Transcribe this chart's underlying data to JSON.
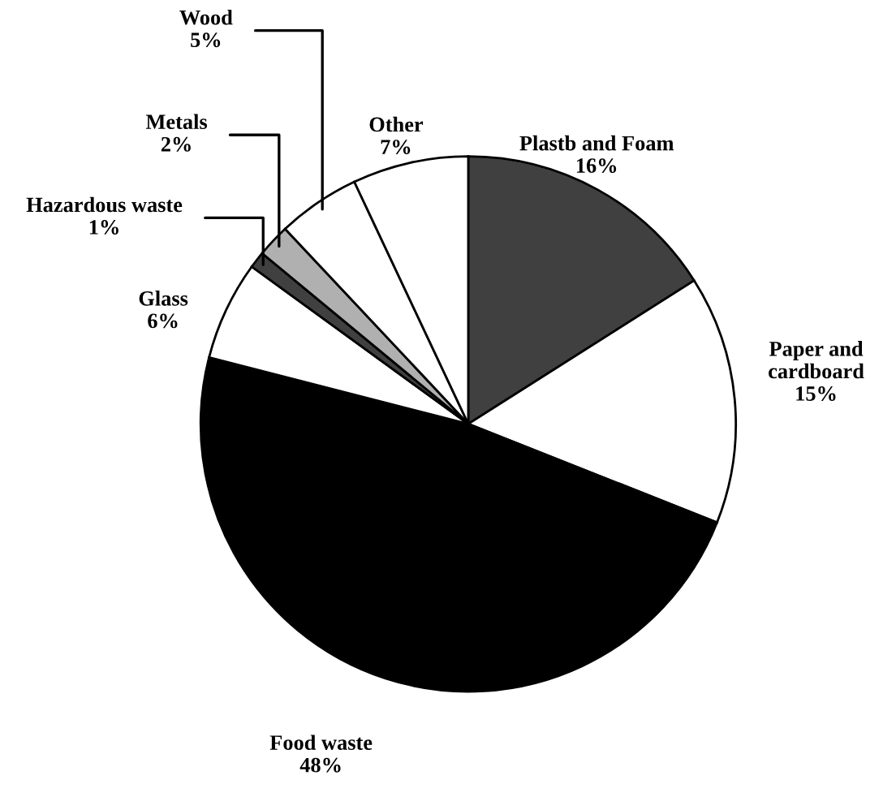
{
  "chart_data": {
    "type": "pie",
    "categories": [
      "Plastb and Foam",
      "Paper and cardboard",
      "Food waste",
      "Glass",
      "Hazardous waste",
      "Metals",
      "Wood",
      "Other"
    ],
    "values": [
      16,
      15,
      48,
      6,
      1,
      2,
      5,
      7
    ],
    "value_labels": [
      "16%",
      "15%",
      "48%",
      "6%",
      "1%",
      "2%",
      "5%",
      "7%"
    ],
    "colors": [
      "#404040",
      "#ffffff",
      "#000000",
      "#ffffff",
      "#404040",
      "#b0b0b0",
      "#ffffff",
      "#ffffff"
    ],
    "legend": false
  }
}
